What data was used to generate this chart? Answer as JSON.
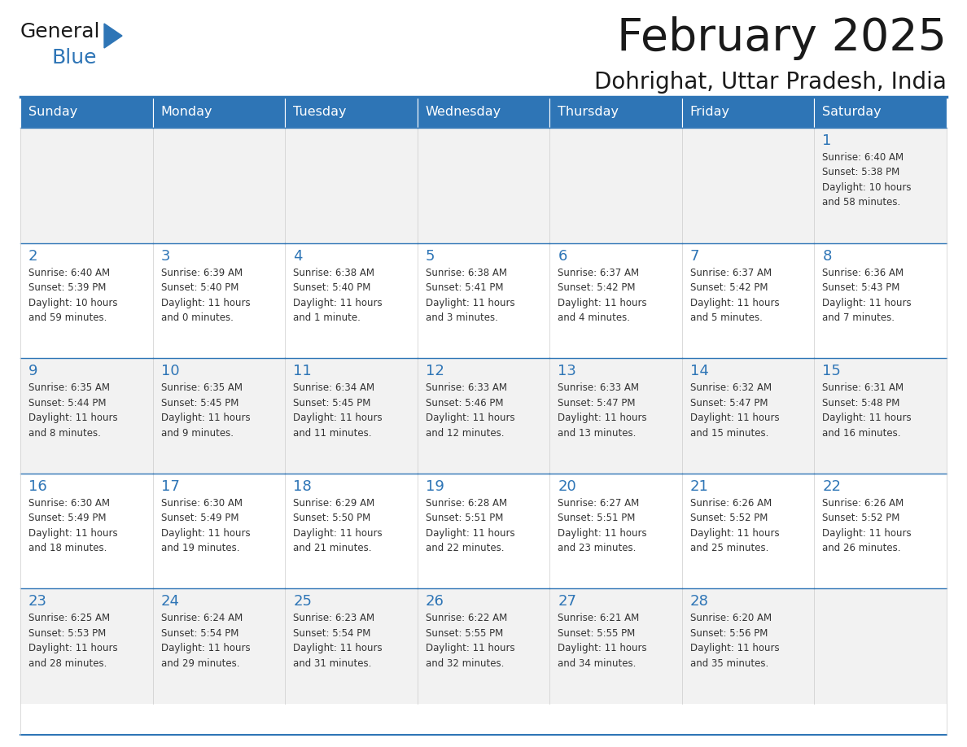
{
  "title": "February 2025",
  "subtitle": "Dohrighat, Uttar Pradesh, India",
  "header_bg": "#2E75B6",
  "header_text": "#FFFFFF",
  "cell_bg_light": "#F2F2F2",
  "cell_bg_white": "#FFFFFF",
  "day_headers": [
    "Sunday",
    "Monday",
    "Tuesday",
    "Wednesday",
    "Thursday",
    "Friday",
    "Saturday"
  ],
  "title_color": "#1a1a1a",
  "subtitle_color": "#1a1a1a",
  "day_number_color": "#2E75B6",
  "info_color": "#333333",
  "logo_general_color": "#1a1a1a",
  "logo_blue_color": "#2E75B6",
  "separator_color": "#2E75B6",
  "calendar_data": [
    [
      null,
      null,
      null,
      null,
      null,
      null,
      {
        "day": 1,
        "sunrise": "6:40 AM",
        "sunset": "5:38 PM",
        "daylight": "10 hours\nand 58 minutes."
      }
    ],
    [
      {
        "day": 2,
        "sunrise": "6:40 AM",
        "sunset": "5:39 PM",
        "daylight": "10 hours\nand 59 minutes."
      },
      {
        "day": 3,
        "sunrise": "6:39 AM",
        "sunset": "5:40 PM",
        "daylight": "11 hours\nand 0 minutes."
      },
      {
        "day": 4,
        "sunrise": "6:38 AM",
        "sunset": "5:40 PM",
        "daylight": "11 hours\nand 1 minute."
      },
      {
        "day": 5,
        "sunrise": "6:38 AM",
        "sunset": "5:41 PM",
        "daylight": "11 hours\nand 3 minutes."
      },
      {
        "day": 6,
        "sunrise": "6:37 AM",
        "sunset": "5:42 PM",
        "daylight": "11 hours\nand 4 minutes."
      },
      {
        "day": 7,
        "sunrise": "6:37 AM",
        "sunset": "5:42 PM",
        "daylight": "11 hours\nand 5 minutes."
      },
      {
        "day": 8,
        "sunrise": "6:36 AM",
        "sunset": "5:43 PM",
        "daylight": "11 hours\nand 7 minutes."
      }
    ],
    [
      {
        "day": 9,
        "sunrise": "6:35 AM",
        "sunset": "5:44 PM",
        "daylight": "11 hours\nand 8 minutes."
      },
      {
        "day": 10,
        "sunrise": "6:35 AM",
        "sunset": "5:45 PM",
        "daylight": "11 hours\nand 9 minutes."
      },
      {
        "day": 11,
        "sunrise": "6:34 AM",
        "sunset": "5:45 PM",
        "daylight": "11 hours\nand 11 minutes."
      },
      {
        "day": 12,
        "sunrise": "6:33 AM",
        "sunset": "5:46 PM",
        "daylight": "11 hours\nand 12 minutes."
      },
      {
        "day": 13,
        "sunrise": "6:33 AM",
        "sunset": "5:47 PM",
        "daylight": "11 hours\nand 13 minutes."
      },
      {
        "day": 14,
        "sunrise": "6:32 AM",
        "sunset": "5:47 PM",
        "daylight": "11 hours\nand 15 minutes."
      },
      {
        "day": 15,
        "sunrise": "6:31 AM",
        "sunset": "5:48 PM",
        "daylight": "11 hours\nand 16 minutes."
      }
    ],
    [
      {
        "day": 16,
        "sunrise": "6:30 AM",
        "sunset": "5:49 PM",
        "daylight": "11 hours\nand 18 minutes."
      },
      {
        "day": 17,
        "sunrise": "6:30 AM",
        "sunset": "5:49 PM",
        "daylight": "11 hours\nand 19 minutes."
      },
      {
        "day": 18,
        "sunrise": "6:29 AM",
        "sunset": "5:50 PM",
        "daylight": "11 hours\nand 21 minutes."
      },
      {
        "day": 19,
        "sunrise": "6:28 AM",
        "sunset": "5:51 PM",
        "daylight": "11 hours\nand 22 minutes."
      },
      {
        "day": 20,
        "sunrise": "6:27 AM",
        "sunset": "5:51 PM",
        "daylight": "11 hours\nand 23 minutes."
      },
      {
        "day": 21,
        "sunrise": "6:26 AM",
        "sunset": "5:52 PM",
        "daylight": "11 hours\nand 25 minutes."
      },
      {
        "day": 22,
        "sunrise": "6:26 AM",
        "sunset": "5:52 PM",
        "daylight": "11 hours\nand 26 minutes."
      }
    ],
    [
      {
        "day": 23,
        "sunrise": "6:25 AM",
        "sunset": "5:53 PM",
        "daylight": "11 hours\nand 28 minutes."
      },
      {
        "day": 24,
        "sunrise": "6:24 AM",
        "sunset": "5:54 PM",
        "daylight": "11 hours\nand 29 minutes."
      },
      {
        "day": 25,
        "sunrise": "6:23 AM",
        "sunset": "5:54 PM",
        "daylight": "11 hours\nand 31 minutes."
      },
      {
        "day": 26,
        "sunrise": "6:22 AM",
        "sunset": "5:55 PM",
        "daylight": "11 hours\nand 32 minutes."
      },
      {
        "day": 27,
        "sunrise": "6:21 AM",
        "sunset": "5:55 PM",
        "daylight": "11 hours\nand 34 minutes."
      },
      {
        "day": 28,
        "sunrise": "6:20 AM",
        "sunset": "5:56 PM",
        "daylight": "11 hours\nand 35 minutes."
      },
      null
    ]
  ],
  "row_bg": [
    "#F2F2F2",
    "#FFFFFF",
    "#F2F2F2",
    "#FFFFFF",
    "#F2F2F2"
  ],
  "figsize": [
    11.88,
    9.18
  ],
  "dpi": 100
}
